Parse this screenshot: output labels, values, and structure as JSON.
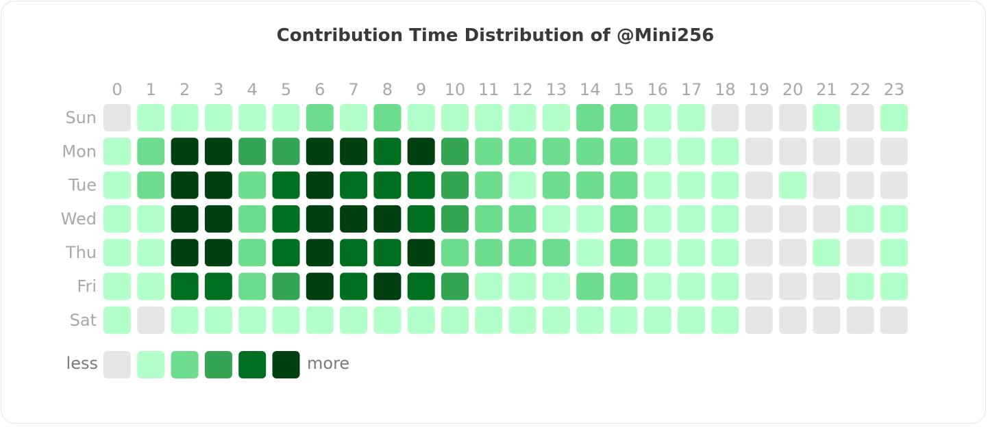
{
  "chart_data": {
    "type": "heatmap",
    "title": "Contribution Time Distribution of @Mini256",
    "hours": [
      "0",
      "1",
      "2",
      "3",
      "4",
      "5",
      "6",
      "7",
      "8",
      "9",
      "10",
      "11",
      "12",
      "13",
      "14",
      "15",
      "16",
      "17",
      "18",
      "19",
      "20",
      "21",
      "22",
      "23"
    ],
    "days": [
      "Sun",
      "Mon",
      "Tue",
      "Wed",
      "Thu",
      "Fri",
      "Sat"
    ],
    "levels": [
      [
        0,
        1,
        1,
        1,
        1,
        1,
        2,
        1,
        2,
        1,
        1,
        1,
        1,
        1,
        2,
        2,
        1,
        1,
        0,
        0,
        0,
        1,
        0,
        1
      ],
      [
        1,
        2,
        5,
        5,
        3,
        3,
        5,
        5,
        4,
        5,
        3,
        2,
        2,
        2,
        2,
        2,
        1,
        1,
        1,
        0,
        0,
        0,
        0,
        0
      ],
      [
        1,
        2,
        5,
        5,
        2,
        4,
        5,
        4,
        4,
        4,
        3,
        2,
        1,
        2,
        2,
        2,
        1,
        1,
        1,
        0,
        1,
        0,
        0,
        0
      ],
      [
        1,
        1,
        5,
        5,
        2,
        4,
        5,
        5,
        5,
        4,
        3,
        2,
        2,
        1,
        1,
        2,
        1,
        1,
        1,
        0,
        0,
        0,
        1,
        1
      ],
      [
        1,
        1,
        5,
        5,
        2,
        4,
        5,
        4,
        4,
        5,
        2,
        2,
        2,
        2,
        1,
        2,
        1,
        1,
        1,
        0,
        0,
        1,
        0,
        1
      ],
      [
        1,
        1,
        4,
        4,
        2,
        3,
        5,
        4,
        5,
        4,
        3,
        1,
        1,
        1,
        2,
        2,
        1,
        1,
        1,
        0,
        0,
        0,
        1,
        1
      ],
      [
        1,
        0,
        1,
        1,
        1,
        1,
        1,
        1,
        1,
        1,
        1,
        1,
        1,
        1,
        1,
        1,
        1,
        1,
        1,
        0,
        0,
        0,
        0,
        0
      ]
    ],
    "scale_colors": [
      "#e6e6e6",
      "#b3ffc9",
      "#6ddc8c",
      "#36a553",
      "#006f20",
      "#003f10"
    ],
    "legend": {
      "less": "less",
      "more": "more"
    }
  }
}
